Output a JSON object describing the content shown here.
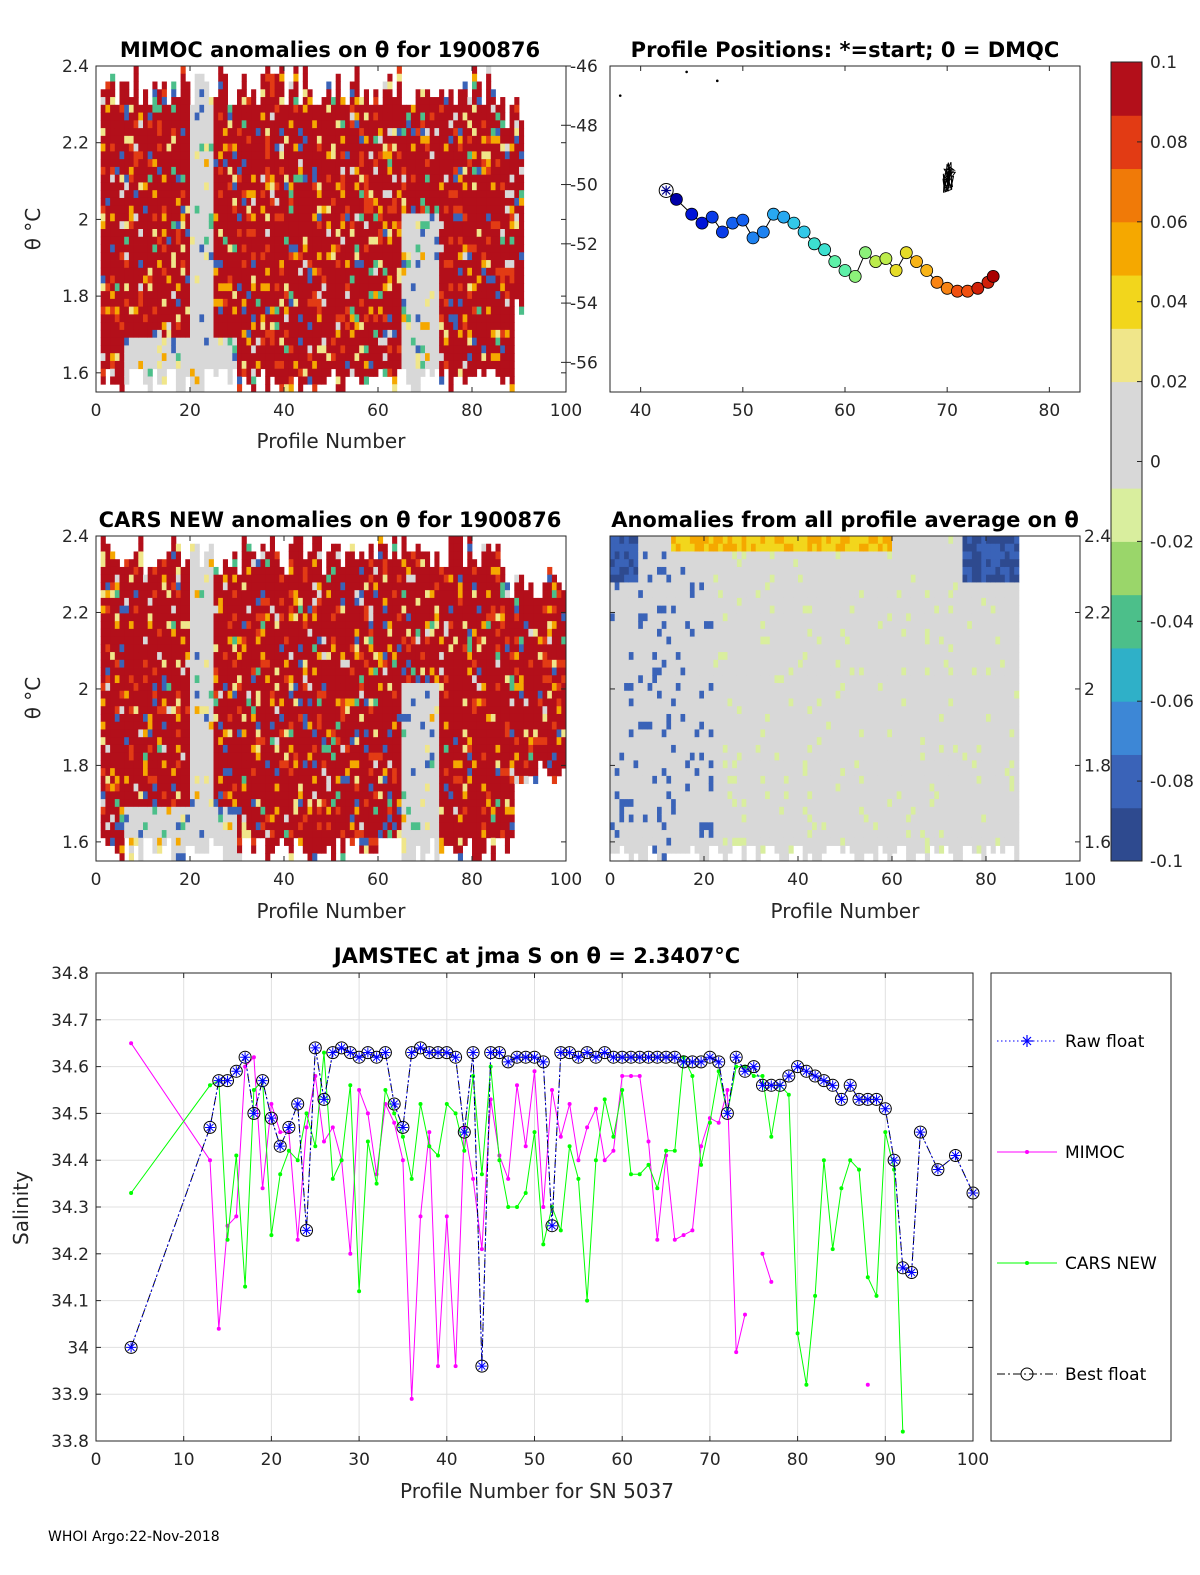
{
  "footer": "WHOI Argo:22-Nov-2018",
  "panels": {
    "mimoc": {
      "title": "MIMOC anomalies on θ  for 1900876",
      "ylabel": "θ °C",
      "xlabel": "Profile Number",
      "xticks": [
        "0",
        "20",
        "40",
        "60",
        "80",
        "100"
      ],
      "yticks": [
        "1.6",
        "1.8",
        "2",
        "2.2",
        "2.4"
      ],
      "right_ticks": [
        "-46",
        "-48",
        "-50",
        "-52",
        "-54",
        "-56"
      ]
    },
    "positions": {
      "title": "Profile Positions: *=start; 0 = DMQC",
      "xticks": [
        "40",
        "50",
        "60",
        "70",
        "80"
      ]
    },
    "cars": {
      "title": "CARS NEW anomalies on θ for 1900876",
      "ylabel": "θ °C",
      "xlabel": "Profile Number",
      "xticks": [
        "0",
        "20",
        "40",
        "60",
        "80",
        "100"
      ],
      "yticks": [
        "1.6",
        "1.8",
        "2",
        "2.2",
        "2.4"
      ]
    },
    "allavg": {
      "title": "Anomalies from all profile average on θ",
      "xlabel": "Profile Number",
      "xticks": [
        "0",
        "20",
        "40",
        "60",
        "80",
        "100"
      ],
      "yticks": [
        "1.6",
        "1.8",
        "2",
        "2.2",
        "2.4"
      ]
    }
  },
  "colorbar": {
    "ticks": [
      "0.1",
      "0.08",
      "0.06",
      "0.04",
      "0.02",
      "0",
      "-0.02",
      "-0.04",
      "-0.06",
      "-0.08",
      "-0.1"
    ],
    "colors": [
      "#2e4a8f",
      "#3a63b8",
      "#3d87d6",
      "#2fb0c8",
      "#4cbf8a",
      "#9ad66a",
      "#d9ee9e",
      "#d8d8d8",
      "#d8d8d8",
      "#f0e68a",
      "#f2d61c",
      "#f5a800",
      "#f07a08",
      "#e23b14",
      "#b30f1a"
    ]
  },
  "chart_data": [
    {
      "type": "heatmap",
      "title": "MIMOC anomalies on θ  for 1900876",
      "xlabel": "Profile Number",
      "ylabel": "θ °C",
      "xlim": [
        0,
        100
      ],
      "ylim": [
        1.55,
        2.4
      ],
      "color_range": [
        -0.1,
        0.1
      ],
      "dominant_value": 0.1
    },
    {
      "type": "scatter",
      "title": "Profile Positions: *=start; 0 = DMQC",
      "xlim": [
        37,
        83
      ],
      "ylim": [
        -57,
        -46
      ],
      "track_x": [
        42.5,
        43.5,
        45,
        46,
        47,
        48,
        49,
        50,
        51,
        52,
        53,
        54,
        55,
        56,
        57,
        58,
        59,
        60,
        61,
        62,
        63,
        64,
        65,
        66,
        67,
        68,
        69,
        70,
        71,
        72,
        73,
        74,
        74.5
      ],
      "track_y": [
        -50.2,
        -50.5,
        -51,
        -51.3,
        -51.1,
        -51.6,
        -51.3,
        -51.2,
        -51.8,
        -51.6,
        -51,
        -51.1,
        -51.3,
        -51.6,
        -52,
        -52.2,
        -52.6,
        -52.9,
        -53.1,
        -52.3,
        -52.6,
        -52.5,
        -52.9,
        -52.3,
        -52.6,
        -52.9,
        -53.3,
        -53.5,
        -53.6,
        -53.6,
        -53.5,
        -53.3,
        -53.1
      ],
      "xticks": [
        40,
        50,
        60,
        70,
        80
      ],
      "yticks": [
        -46,
        -48,
        -50,
        -52,
        -54,
        -56
      ]
    },
    {
      "type": "heatmap",
      "title": "CARS NEW anomalies on θ for 1900876",
      "xlabel": "Profile Number",
      "ylabel": "θ °C",
      "xlim": [
        0,
        100
      ],
      "ylim": [
        1.55,
        2.4
      ],
      "color_range": [
        -0.1,
        0.1
      ],
      "dominant_value": 0.1
    },
    {
      "type": "heatmap",
      "title": "Anomalies from all profile average on θ",
      "xlabel": "Profile Number",
      "xlim": [
        0,
        100
      ],
      "ylim": [
        1.55,
        2.4
      ],
      "color_range": [
        -0.1,
        0.1
      ],
      "dominant_value": 0.0
    },
    {
      "type": "line",
      "title": "JAMSTEC at jma S on θ = 2.3407°C",
      "xlabel": "Profile Number for SN 5037",
      "ylabel": "Salinity",
      "xlim": [
        0,
        100
      ],
      "ylim": [
        33.8,
        34.8
      ],
      "xticks": [
        0,
        10,
        20,
        30,
        40,
        50,
        60,
        70,
        80,
        90,
        100
      ],
      "yticks": [
        33.8,
        33.9,
        34,
        34.1,
        34.2,
        34.3,
        34.4,
        34.5,
        34.6,
        34.7,
        34.8
      ],
      "legend_position": "right",
      "series": [
        {
          "name": "Raw float",
          "style": "dotted-star",
          "color": "#0000ff",
          "x": [
            4,
            13,
            14,
            15,
            16,
            17,
            18,
            19,
            20,
            21,
            22,
            23,
            24,
            25,
            26,
            27,
            28,
            29,
            30,
            31,
            32,
            33,
            34,
            35,
            36,
            37,
            38,
            39,
            40,
            41,
            42,
            43,
            44,
            45,
            46,
            47,
            48,
            49,
            50,
            51,
            52,
            53,
            54,
            55,
            56,
            57,
            58,
            59,
            60,
            61,
            62,
            63,
            64,
            65,
            66,
            67,
            68,
            69,
            70,
            71,
            72,
            73,
            74,
            75,
            76,
            77,
            78,
            79,
            80,
            81,
            82,
            83,
            84,
            85,
            86,
            87,
            88,
            89,
            90,
            91,
            92,
            93,
            94,
            96,
            98,
            100
          ],
          "y": [
            34.0,
            34.47,
            34.57,
            34.57,
            34.59,
            34.62,
            34.5,
            34.57,
            34.49,
            34.43,
            34.47,
            34.52,
            34.25,
            34.64,
            34.53,
            34.63,
            34.64,
            34.63,
            34.62,
            34.63,
            34.62,
            34.63,
            34.52,
            34.47,
            34.63,
            34.64,
            34.63,
            34.63,
            34.63,
            34.62,
            34.46,
            34.63,
            33.96,
            34.63,
            34.63,
            34.61,
            34.62,
            34.62,
            34.62,
            34.61,
            34.26,
            34.63,
            34.63,
            34.62,
            34.63,
            34.62,
            34.63,
            34.62,
            34.62,
            34.62,
            34.62,
            34.62,
            34.62,
            34.62,
            34.62,
            34.61,
            34.61,
            34.61,
            34.62,
            34.61,
            34.5,
            34.62,
            34.59,
            34.6,
            34.56,
            34.56,
            34.56,
            34.58,
            34.6,
            34.59,
            34.58,
            34.57,
            34.56,
            34.53,
            34.56,
            34.53,
            34.53,
            34.53,
            34.51,
            34.4,
            34.17,
            34.16,
            34.46,
            34.38,
            34.41,
            34.33
          ]
        },
        {
          "name": "MIMOC",
          "style": "solid-dot",
          "color": "#ff00ff",
          "x": [
            4,
            13,
            14,
            15,
            16,
            17,
            18,
            19,
            20,
            21,
            22,
            23,
            24,
            25,
            26,
            27,
            28,
            29,
            30,
            31,
            32,
            33,
            34,
            35,
            36,
            37,
            38,
            39,
            40,
            41,
            42,
            43,
            44,
            45,
            46,
            47,
            48,
            49,
            50,
            51,
            52,
            53,
            54,
            55,
            56,
            57,
            58,
            59,
            60,
            61,
            62,
            63,
            64,
            65,
            66,
            67,
            68,
            69,
            70,
            71,
            72,
            73,
            74,
            76,
            77,
            88
          ],
          "y": [
            34.65,
            34.4,
            34.04,
            34.26,
            34.28,
            34.6,
            34.62,
            34.34,
            34.52,
            34.46,
            34.46,
            34.23,
            34.47,
            34.58,
            34.44,
            34.47,
            34.4,
            34.2,
            34.55,
            34.5,
            34.37,
            34.52,
            34.48,
            34.4,
            33.89,
            34.28,
            34.46,
            33.96,
            34.28,
            33.96,
            34.47,
            34.36,
            34.21,
            34.53,
            34.41,
            34.36,
            34.56,
            34.43,
            34.59,
            34.3,
            34.55,
            34.45,
            34.52,
            34.4,
            34.47,
            34.51,
            34.4,
            34.42,
            34.58,
            34.58,
            34.58,
            34.44,
            34.23,
            34.41,
            34.23,
            34.24,
            34.25,
            34.43,
            34.49,
            34.48,
            34.55,
            33.99,
            34.07,
            34.2,
            34.14,
            33.92
          ]
        },
        {
          "name": "CARS NEW",
          "style": "solid-dot",
          "color": "#00ff00",
          "x": [
            4,
            13,
            14,
            15,
            16,
            17,
            18,
            19,
            20,
            21,
            22,
            23,
            24,
            25,
            26,
            27,
            28,
            29,
            30,
            31,
            32,
            33,
            34,
            35,
            36,
            37,
            38,
            39,
            40,
            41,
            42,
            43,
            44,
            45,
            46,
            47,
            48,
            49,
            50,
            51,
            52,
            53,
            54,
            55,
            56,
            57,
            58,
            59,
            60,
            61,
            62,
            63,
            64,
            65,
            66,
            67,
            68,
            69,
            70,
            71,
            72,
            73,
            74,
            75,
            76,
            77,
            78,
            79,
            80,
            81,
            82,
            83,
            84,
            85,
            86,
            87,
            88,
            89,
            90,
            91,
            92
          ],
          "y": [
            34.33,
            34.56,
            34.57,
            34.23,
            34.41,
            34.13,
            34.55,
            34.57,
            34.24,
            34.37,
            34.42,
            34.4,
            34.5,
            34.43,
            34.63,
            34.36,
            34.4,
            34.56,
            34.12,
            34.44,
            34.35,
            34.55,
            34.5,
            34.45,
            34.36,
            34.52,
            34.43,
            34.41,
            34.52,
            34.5,
            34.42,
            34.58,
            34.37,
            34.6,
            34.4,
            34.3,
            34.3,
            34.33,
            34.46,
            34.22,
            34.3,
            34.25,
            34.43,
            34.36,
            34.1,
            34.4,
            34.53,
            34.45,
            34.55,
            34.37,
            34.37,
            34.39,
            34.34,
            34.42,
            34.42,
            34.62,
            34.58,
            34.39,
            34.48,
            34.59,
            34.5,
            34.6,
            34.6,
            34.58,
            34.58,
            34.45,
            34.56,
            34.54,
            34.03,
            33.92,
            34.11,
            34.4,
            34.21,
            34.34,
            34.4,
            34.38,
            34.15,
            34.11,
            34.46,
            34.38,
            33.82
          ]
        },
        {
          "name": "Best float",
          "style": "dashdot-circle",
          "color": "#000000",
          "x": [
            4,
            13,
            14,
            15,
            16,
            17,
            18,
            19,
            20,
            21,
            22,
            23,
            24,
            25,
            26,
            27,
            28,
            29,
            30,
            31,
            32,
            33,
            34,
            35,
            36,
            37,
            38,
            39,
            40,
            41,
            42,
            43,
            44,
            45,
            46,
            47,
            48,
            49,
            50,
            51,
            52,
            53,
            54,
            55,
            56,
            57,
            58,
            59,
            60,
            61,
            62,
            63,
            64,
            65,
            66,
            67,
            68,
            69,
            70,
            71,
            72,
            73,
            74,
            75,
            76,
            77,
            78,
            79,
            80,
            81,
            82,
            83,
            84,
            85,
            86,
            87,
            88,
            89,
            90,
            91,
            92,
            93,
            94,
            96,
            98,
            100
          ],
          "y": [
            34.0,
            34.47,
            34.57,
            34.57,
            34.59,
            34.62,
            34.5,
            34.57,
            34.49,
            34.43,
            34.47,
            34.52,
            34.25,
            34.64,
            34.53,
            34.63,
            34.64,
            34.63,
            34.62,
            34.63,
            34.62,
            34.63,
            34.52,
            34.47,
            34.63,
            34.64,
            34.63,
            34.63,
            34.63,
            34.62,
            34.46,
            34.63,
            33.96,
            34.63,
            34.63,
            34.61,
            34.62,
            34.62,
            34.62,
            34.61,
            34.26,
            34.63,
            34.63,
            34.62,
            34.63,
            34.62,
            34.63,
            34.62,
            34.62,
            34.62,
            34.62,
            34.62,
            34.62,
            34.62,
            34.62,
            34.61,
            34.61,
            34.61,
            34.62,
            34.61,
            34.5,
            34.62,
            34.59,
            34.6,
            34.56,
            34.56,
            34.56,
            34.58,
            34.6,
            34.59,
            34.58,
            34.57,
            34.56,
            34.53,
            34.56,
            34.53,
            34.53,
            34.53,
            34.51,
            34.4,
            34.17,
            34.16,
            34.46,
            34.38,
            34.41,
            34.33
          ]
        }
      ]
    }
  ]
}
